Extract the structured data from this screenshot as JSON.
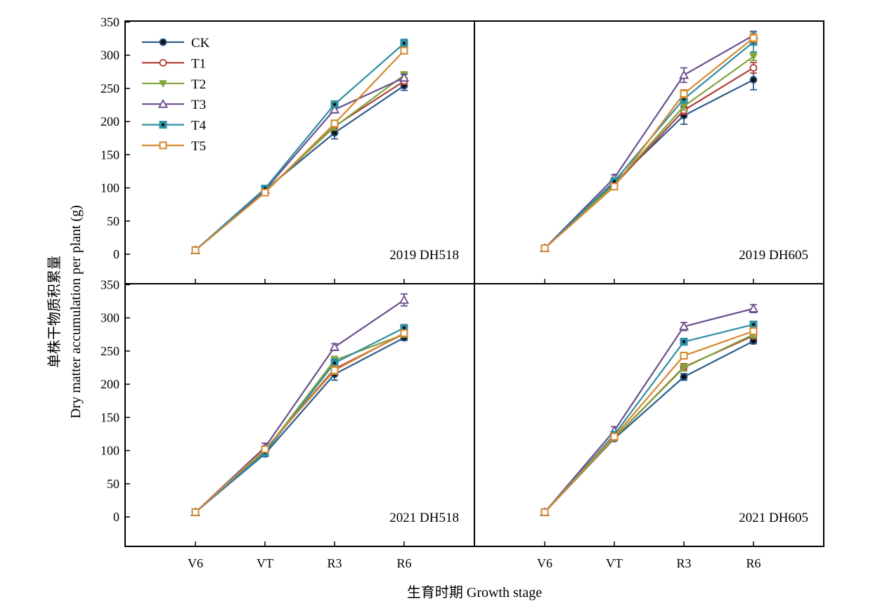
{
  "chart_data": {
    "type": "line",
    "layout": "2x2 panels",
    "categories": [
      "V6",
      "VT",
      "R3",
      "R6"
    ],
    "xlabel": "生育时期 Growth stage",
    "ylabel_cn": "单株干物质积累量",
    "ylabel_en": "Dry matter accumulation per plant (g)",
    "ylim": [
      -45,
      350
    ],
    "yticks": [
      0,
      50,
      100,
      150,
      200,
      250,
      300,
      350
    ],
    "legend_position": "top-left",
    "error_bars": true,
    "series_styles": [
      {
        "name": "CK",
        "color": "#2e5b8d",
        "marker": "filled-circle"
      },
      {
        "name": "T1",
        "color": "#b0403b",
        "marker": "open-circle"
      },
      {
        "name": "T2",
        "color": "#7fa33a",
        "marker": "filled-triangle-down"
      },
      {
        "name": "T3",
        "color": "#6a4f8e",
        "marker": "open-triangle-up"
      },
      {
        "name": "T4",
        "color": "#2f8ea1",
        "marker": "square-dot"
      },
      {
        "name": "T5",
        "color": "#d4882f",
        "marker": "open-square"
      }
    ],
    "panels": [
      {
        "label": "2019 DH518",
        "series": [
          {
            "name": "CK",
            "values": [
              6,
              97,
              183,
              254
            ],
            "errors": [
              1,
              3,
              9,
              7
            ]
          },
          {
            "name": "T1",
            "values": [
              6,
              94,
              193,
              261
            ],
            "errors": [
              1,
              3,
              5,
              5
            ]
          },
          {
            "name": "T2",
            "values": [
              6,
              95,
              192,
              270
            ],
            "errors": [
              1,
              3,
              5,
              5
            ]
          },
          {
            "name": "T3",
            "values": [
              6,
              97,
              218,
              266
            ],
            "errors": [
              1,
              3,
              5,
              5
            ]
          },
          {
            "name": "T4",
            "values": [
              6,
              99,
              226,
              318
            ],
            "errors": [
              1,
              3,
              5,
              6
            ]
          },
          {
            "name": "T5",
            "values": [
              6,
              93,
              197,
              307
            ],
            "errors": [
              1,
              3,
              5,
              5
            ]
          }
        ]
      },
      {
        "label": "2019 DH605",
        "series": [
          {
            "name": "CK",
            "values": [
              9,
              108,
              209,
              263
            ],
            "errors": [
              1,
              5,
              13,
              15
            ]
          },
          {
            "name": "T1",
            "values": [
              9,
              104,
              217,
              281
            ],
            "errors": [
              1,
              4,
              6,
              8
            ]
          },
          {
            "name": "T2",
            "values": [
              9,
              105,
              223,
              298
            ],
            "errors": [
              1,
              4,
              6,
              6
            ]
          },
          {
            "name": "T3",
            "values": [
              9,
              115,
              270,
              330
            ],
            "errors": [
              1,
              5,
              11,
              6
            ]
          },
          {
            "name": "T4",
            "values": [
              9,
              110,
              234,
              320
            ],
            "errors": [
              1,
              4,
              6,
              15
            ]
          },
          {
            "name": "T5",
            "values": [
              9,
              102,
              242,
              326
            ],
            "errors": [
              1,
              4,
              6,
              6
            ]
          }
        ]
      },
      {
        "label": "2021 DH518",
        "series": [
          {
            "name": "CK",
            "values": [
              7,
              95,
              215,
              270
            ],
            "errors": [
              1,
              4,
              9,
              4
            ]
          },
          {
            "name": "T1",
            "values": [
              7,
              101,
              223,
              276
            ],
            "errors": [
              1,
              4,
              6,
              4
            ]
          },
          {
            "name": "T2",
            "values": [
              7,
              99,
              236,
              275
            ],
            "errors": [
              1,
              4,
              6,
              4
            ]
          },
          {
            "name": "T3",
            "values": [
              7,
              105,
              256,
              327
            ],
            "errors": [
              1,
              6,
              5,
              9
            ]
          },
          {
            "name": "T4",
            "values": [
              7,
              97,
              232,
              285
            ],
            "errors": [
              1,
              4,
              6,
              4
            ]
          },
          {
            "name": "T5",
            "values": [
              7,
              102,
              221,
              277
            ],
            "errors": [
              1,
              4,
              6,
              4
            ]
          }
        ]
      },
      {
        "label": "2021 DH605",
        "series": [
          {
            "name": "CK",
            "values": [
              7,
              118,
              211,
              265
            ],
            "errors": [
              1,
              3,
              5,
              4
            ]
          },
          {
            "name": "T1",
            "values": [
              7,
              119,
              226,
              273
            ],
            "errors": [
              1,
              3,
              5,
              4
            ]
          },
          {
            "name": "T2",
            "values": [
              7,
              119,
              225,
              275
            ],
            "errors": [
              1,
              3,
              5,
              4
            ]
          },
          {
            "name": "T3",
            "values": [
              7,
              130,
              287,
              314
            ],
            "errors": [
              1,
              6,
              6,
              6
            ]
          },
          {
            "name": "T4",
            "values": [
              7,
              124,
              264,
              290
            ],
            "errors": [
              1,
              4,
              5,
              4
            ]
          },
          {
            "name": "T5",
            "values": [
              7,
              121,
              243,
              280
            ],
            "errors": [
              1,
              4,
              5,
              4
            ]
          }
        ]
      }
    ]
  }
}
